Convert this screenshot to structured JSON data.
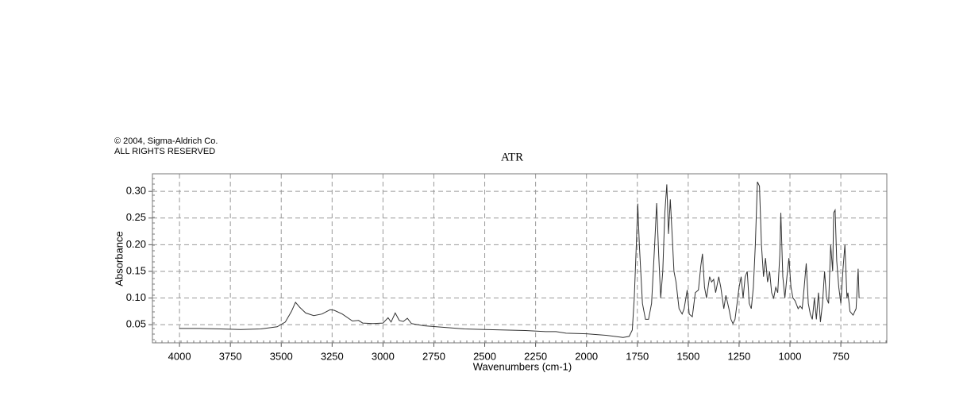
{
  "chart_data": {
    "type": "line",
    "copyright": "© 2004, Sigma-Aldrich Co.",
    "rights": "ALL RIGHTS RESERVED",
    "title": "ATR",
    "x_label": "Wavenumbers (cm-1)",
    "y_label": "Absorbance",
    "xlim": [
      4133,
      524
    ],
    "ylim": [
      0.016,
      0.333
    ],
    "xticks": [
      4000,
      3750,
      3500,
      3250,
      3000,
      2750,
      2500,
      2250,
      2000,
      1750,
      1500,
      1250,
      1000,
      750
    ],
    "yticks": [
      0.05,
      {
        "value": 0.1,
        "label": "0.10"
      },
      0.15,
      {
        "value": 0.2,
        "label": "0.20"
      },
      0.25,
      {
        "value": 0.3,
        "label": "0.30"
      }
    ],
    "grid": true,
    "series": [
      {
        "color": "#333333",
        "x": [
          4000,
          3900,
          3800,
          3700,
          3600,
          3520,
          3480,
          3450,
          3430,
          3410,
          3380,
          3340,
          3300,
          3260,
          3240,
          3200,
          3150,
          3120,
          3100,
          3050,
          3000,
          2975,
          2960,
          2940,
          2920,
          2900,
          2880,
          2860,
          2800,
          2700,
          2600,
          2500,
          2400,
          2300,
          2200,
          2150,
          2100,
          2000,
          1900,
          1820,
          1790,
          1775,
          1765,
          1755,
          1748,
          1740,
          1725,
          1710,
          1695,
          1680,
          1665,
          1655,
          1645,
          1635,
          1625,
          1615,
          1605,
          1597,
          1588,
          1578,
          1570,
          1560,
          1545,
          1530,
          1520,
          1505,
          1495,
          1480,
          1465,
          1450,
          1438,
          1430,
          1420,
          1410,
          1395,
          1385,
          1375,
          1365,
          1350,
          1340,
          1325,
          1315,
          1300,
          1290,
          1280,
          1270,
          1260,
          1250,
          1240,
          1230,
          1220,
          1210,
          1200,
          1190,
          1180,
          1170,
          1160,
          1150,
          1140,
          1130,
          1120,
          1110,
          1100,
          1090,
          1080,
          1070,
          1060,
          1050,
          1045,
          1035,
          1025,
          1015,
          1005,
          995,
          985,
          975,
          960,
          950,
          940,
          930,
          920,
          910,
          900,
          890,
          880,
          870,
          860,
          850,
          840,
          830,
          820,
          810,
          800,
          790,
          785,
          778,
          770,
          760,
          750,
          740,
          730,
          720,
          715,
          705,
          690,
          675,
          665,
          660
        ],
        "values": [
          0.043,
          0.043,
          0.042,
          0.041,
          0.042,
          0.046,
          0.055,
          0.075,
          0.092,
          0.083,
          0.072,
          0.067,
          0.07,
          0.078,
          0.077,
          0.07,
          0.057,
          0.058,
          0.053,
          0.052,
          0.053,
          0.063,
          0.055,
          0.072,
          0.058,
          0.056,
          0.062,
          0.052,
          0.048,
          0.045,
          0.042,
          0.041,
          0.04,
          0.039,
          0.037,
          0.037,
          0.034,
          0.033,
          0.03,
          0.026,
          0.028,
          0.04,
          0.1,
          0.2,
          0.277,
          0.2,
          0.09,
          0.06,
          0.06,
          0.09,
          0.2,
          0.278,
          0.18,
          0.1,
          0.15,
          0.26,
          0.313,
          0.22,
          0.285,
          0.21,
          0.15,
          0.13,
          0.08,
          0.07,
          0.08,
          0.115,
          0.07,
          0.065,
          0.11,
          0.115,
          0.16,
          0.183,
          0.12,
          0.1,
          0.14,
          0.13,
          0.135,
          0.11,
          0.14,
          0.12,
          0.08,
          0.105,
          0.08,
          0.06,
          0.052,
          0.06,
          0.09,
          0.12,
          0.14,
          0.1,
          0.14,
          0.15,
          0.09,
          0.08,
          0.12,
          0.2,
          0.318,
          0.31,
          0.2,
          0.14,
          0.175,
          0.13,
          0.15,
          0.11,
          0.1,
          0.12,
          0.11,
          0.18,
          0.26,
          0.14,
          0.1,
          0.14,
          0.175,
          0.12,
          0.1,
          0.095,
          0.08,
          0.085,
          0.08,
          0.12,
          0.165,
          0.09,
          0.07,
          0.06,
          0.1,
          0.06,
          0.11,
          0.055,
          0.09,
          0.15,
          0.1,
          0.09,
          0.2,
          0.15,
          0.26,
          0.265,
          0.17,
          0.12,
          0.09,
          0.15,
          0.2,
          0.1,
          0.11,
          0.075,
          0.068,
          0.08,
          0.155,
          0.1
        ]
      }
    ]
  }
}
